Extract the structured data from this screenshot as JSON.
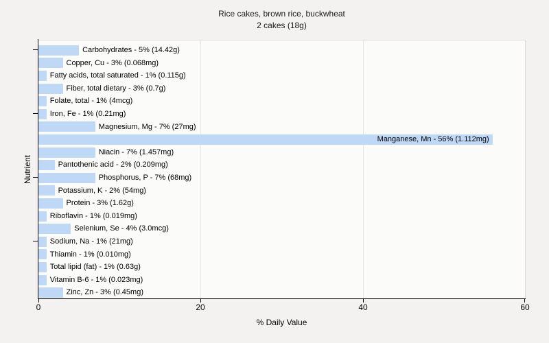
{
  "title": {
    "line1": "Rice cakes, brown rice, buckwheat",
    "line2": "2 cakes (18g)"
  },
  "chart_data": {
    "type": "bar",
    "orientation": "horizontal",
    "title": "Rice cakes, brown rice, buckwheat",
    "subtitle": "2 cakes (18g)",
    "xlabel": "% Daily Value",
    "ylabel": "Nutrient",
    "xlim": [
      0,
      60
    ],
    "x_ticks": [
      0,
      20,
      40,
      60
    ],
    "grid": "vertical gridlines at inner x ticks",
    "legend": "none",
    "categories": [
      "Carbohydrates",
      "Copper, Cu",
      "Fatty acids, total saturated",
      "Fiber, total dietary",
      "Folate, total",
      "Iron, Fe",
      "Magnesium, Mg",
      "Manganese, Mn",
      "Niacin",
      "Pantothenic acid",
      "Phosphorus, P",
      "Potassium, K",
      "Protein",
      "Riboflavin",
      "Selenium, Se",
      "Sodium, Na",
      "Thiamin",
      "Total lipid (fat)",
      "Vitamin B-6",
      "Zinc, Zn"
    ],
    "values": [
      5,
      3,
      1,
      3,
      1,
      1,
      7,
      56,
      7,
      2,
      7,
      2,
      3,
      1,
      4,
      1,
      1,
      1,
      1,
      3
    ],
    "nutrients": [
      {
        "name": "Carbohydrates",
        "pct": 5,
        "amount": "14.42g",
        "label": "Carbohydrates - 5% (14.42g)"
      },
      {
        "name": "Copper, Cu",
        "pct": 3,
        "amount": "0.068mg",
        "label": "Copper, Cu - 3% (0.068mg)"
      },
      {
        "name": "Fatty acids, total saturated",
        "pct": 1,
        "amount": "0.115g",
        "label": "Fatty acids, total saturated - 1% (0.115g)"
      },
      {
        "name": "Fiber, total dietary",
        "pct": 3,
        "amount": "0.7g",
        "label": "Fiber, total dietary - 3% (0.7g)"
      },
      {
        "name": "Folate, total",
        "pct": 1,
        "amount": "4mcg",
        "label": "Folate, total - 1% (4mcg)"
      },
      {
        "name": "Iron, Fe",
        "pct": 1,
        "amount": "0.21mg",
        "label": "Iron, Fe - 1% (0.21mg)"
      },
      {
        "name": "Magnesium, Mg",
        "pct": 7,
        "amount": "27mg",
        "label": "Magnesium, Mg - 7% (27mg)"
      },
      {
        "name": "Manganese, Mn",
        "pct": 56,
        "amount": "1.112mg",
        "label": "Manganese, Mn - 56% (1.112mg)"
      },
      {
        "name": "Niacin",
        "pct": 7,
        "amount": "1.457mg",
        "label": "Niacin - 7% (1.457mg)"
      },
      {
        "name": "Pantothenic acid",
        "pct": 2,
        "amount": "0.209mg",
        "label": "Pantothenic acid - 2% (0.209mg)"
      },
      {
        "name": "Phosphorus, P",
        "pct": 7,
        "amount": "68mg",
        "label": "Phosphorus, P - 7% (68mg)"
      },
      {
        "name": "Potassium, K",
        "pct": 2,
        "amount": "54mg",
        "label": "Potassium, K - 2% (54mg)"
      },
      {
        "name": "Protein",
        "pct": 3,
        "amount": "1.62g",
        "label": "Protein - 3% (1.62g)"
      },
      {
        "name": "Riboflavin",
        "pct": 1,
        "amount": "0.019mg",
        "label": "Riboflavin - 1% (0.019mg)"
      },
      {
        "name": "Selenium, Se",
        "pct": 4,
        "amount": "3.0mcg",
        "label": "Selenium, Se - 4% (3.0mcg)"
      },
      {
        "name": "Sodium, Na",
        "pct": 1,
        "amount": "21mg",
        "label": "Sodium, Na - 1% (21mg)"
      },
      {
        "name": "Thiamin",
        "pct": 1,
        "amount": "0.010mg",
        "label": "Thiamin - 1% (0.010mg)"
      },
      {
        "name": "Total lipid (fat)",
        "pct": 1,
        "amount": "0.63g",
        "label": "Total lipid (fat) - 1% (0.63g)"
      },
      {
        "name": "Vitamin B-6",
        "pct": 1,
        "amount": "0.023mg",
        "label": "Vitamin B-6 - 1% (0.023mg)"
      },
      {
        "name": "Zinc, Zn",
        "pct": 3,
        "amount": "0.45mg",
        "label": "Zinc, Zn - 3% (0.45mg)"
      }
    ]
  },
  "colors": {
    "background": "#f3f2f1",
    "plot_background": "#fbfbfa",
    "bar_fill": "#bfd8f6",
    "gridline": "#e7e7e5",
    "axis": "#000000",
    "plot_border": "#dcdcdc",
    "text": "#1a1a1a"
  }
}
